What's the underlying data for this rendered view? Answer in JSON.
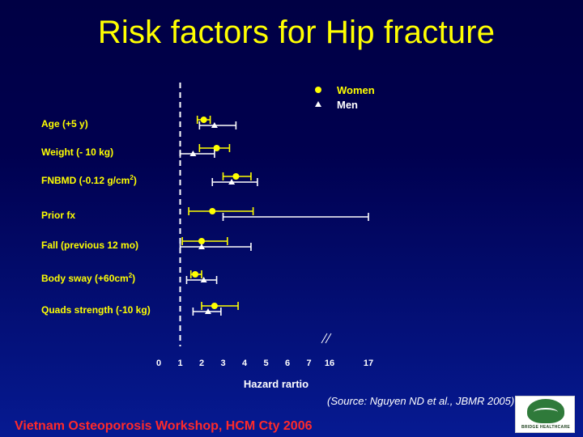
{
  "slide": {
    "title": "Risk factors for Hip fracture",
    "source": "(Source: Nguyen ND et al., JBMR 2005)",
    "footer": "Vietnam Osteoporosis Workshop, HCM Cty 2006",
    "logo_text": "BRIDGE HEALTHCARE",
    "colors": {
      "background": "#000050",
      "title": "#ffff00",
      "data": "#ffff00",
      "axis": "#ffffff",
      "footer": "#ff2a2a"
    }
  },
  "chart_data": {
    "type": "forest",
    "title": "",
    "xlabel": "Hazard rartio",
    "ylabel": "",
    "xticks": [
      "0",
      "1",
      "2",
      "3",
      "4",
      "5",
      "6",
      "7",
      "16",
      "17"
    ],
    "reference_line": 1,
    "axis_break": "between 7 and 16",
    "legend": {
      "placement": "top-right",
      "entries": [
        {
          "name": "Women",
          "marker": "circle"
        },
        {
          "name": "Men",
          "marker": "triangle"
        }
      ]
    },
    "categories": [
      "Age (+5 y)",
      "Weight (- 10 kg)",
      "FNBMD (-0.12 g/cm2)",
      "Prior fx",
      "Fall (previous 12 mo)",
      "Body sway (+60cm2)",
      "Quads strength (-10 kg)"
    ],
    "series": [
      {
        "name": "Women",
        "marker": "circle",
        "points": [
          {
            "hr": 2.1,
            "lo": 1.8,
            "hi": 2.4
          },
          {
            "hr": 2.7,
            "lo": 1.9,
            "hi": 3.3
          },
          {
            "hr": 3.6,
            "lo": 3.0,
            "hi": 4.3
          },
          {
            "hr": 2.5,
            "lo": 1.4,
            "hi": 4.4
          },
          {
            "hr": 2.0,
            "lo": 1.1,
            "hi": 3.2
          },
          {
            "hr": 1.7,
            "lo": 1.5,
            "hi": 2.0
          },
          {
            "hr": 2.6,
            "lo": 2.0,
            "hi": 3.7
          }
        ]
      },
      {
        "name": "Men",
        "marker": "triangle",
        "points": [
          {
            "hr": 2.6,
            "lo": 1.9,
            "hi": 3.6
          },
          {
            "hr": 1.6,
            "lo": 1.0,
            "hi": 2.6
          },
          {
            "hr": 3.4,
            "lo": 2.5,
            "hi": 4.6
          },
          {
            "hr": 7.2,
            "lo": 3.0,
            "hi": 17.0
          },
          {
            "hr": 2.0,
            "lo": 1.0,
            "hi": 4.3
          },
          {
            "hr": 2.1,
            "lo": 1.3,
            "hi": 2.7
          },
          {
            "hr": 2.3,
            "lo": 1.6,
            "hi": 2.9
          }
        ]
      }
    ]
  }
}
